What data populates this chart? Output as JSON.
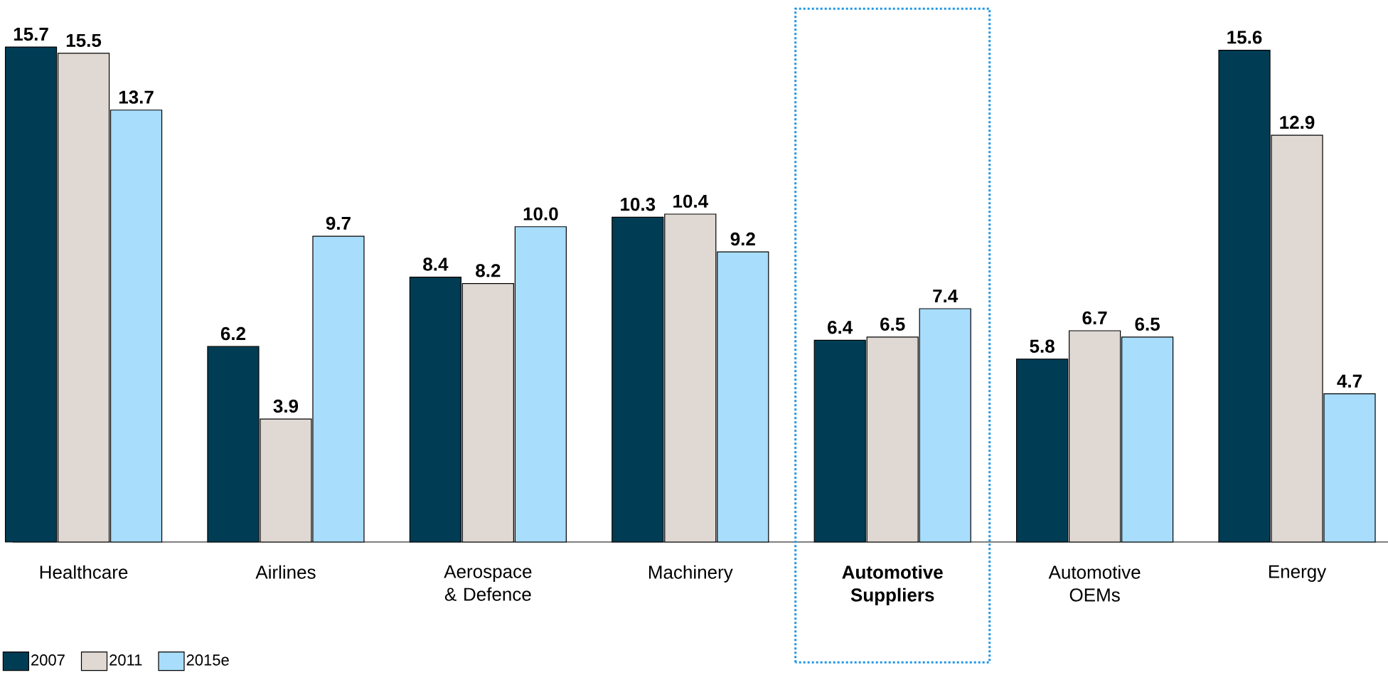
{
  "chart_data": {
    "type": "bar",
    "categories": [
      "Healthcare",
      "Airlines",
      "Aerospace & Defence",
      "Machinery",
      "**Automotive Suppliers**",
      "Automotive OEMs",
      "Energy"
    ],
    "series": [
      {
        "name": "2007",
        "color": "#003d55",
        "values": [
          15.7,
          6.2,
          8.4,
          10.3,
          6.4,
          5.8,
          15.6
        ],
        "value_labels": [
          "15.7",
          "6.2",
          "8.4",
          "10.3",
          "6.4",
          "5.8",
          "15.6"
        ]
      },
      {
        "name": "2011",
        "color": "#e0d8d3",
        "values": [
          15.5,
          3.9,
          8.2,
          10.4,
          6.5,
          6.7,
          12.9
        ],
        "value_labels": [
          "15.5",
          "3.9",
          "8.2",
          "10.4",
          "6.5",
          "6.7",
          "12.9"
        ]
      },
      {
        "name": "2015e",
        "color": "#a8ddfb",
        "values": [
          13.7,
          9.7,
          10.0,
          9.2,
          7.4,
          6.5,
          4.7
        ],
        "value_labels": [
          "13.7",
          "9.7",
          "10.0",
          "9.2",
          "7.4",
          "6.5",
          "4.7"
        ]
      }
    ],
    "data_labels": true,
    "legend": "bottom left"
  }
}
